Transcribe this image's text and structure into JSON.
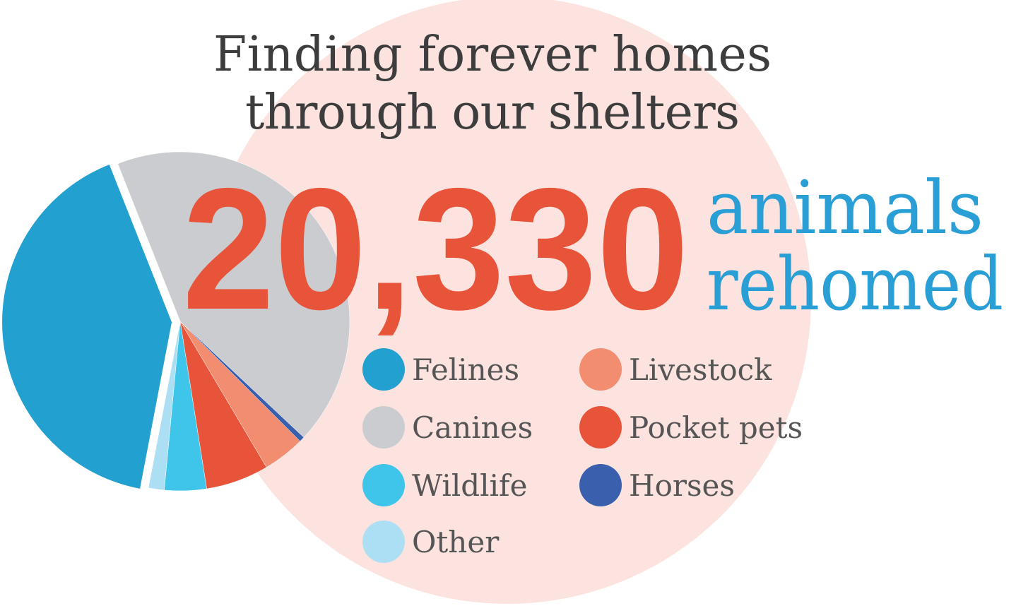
{
  "chart_data": {
    "type": "pie",
    "title": [
      "Finding forever homes",
      "through our shelters"
    ],
    "headline": "20,330",
    "headline_caption": [
      "animals",
      "rehomed"
    ],
    "categories": [
      "Canines",
      "Horses",
      "Livestock",
      "Pocket pets",
      "Wildlife",
      "Other",
      "Felines"
    ],
    "values": [
      43,
      0.5,
      4,
      6,
      4,
      1.5,
      41
    ],
    "colors": [
      "#cbcccf",
      "#3a5fad",
      "#f28d70",
      "#e8543a",
      "#3fc4ea",
      "#acdff3",
      "#22a0cf"
    ],
    "legend": true
  }
}
